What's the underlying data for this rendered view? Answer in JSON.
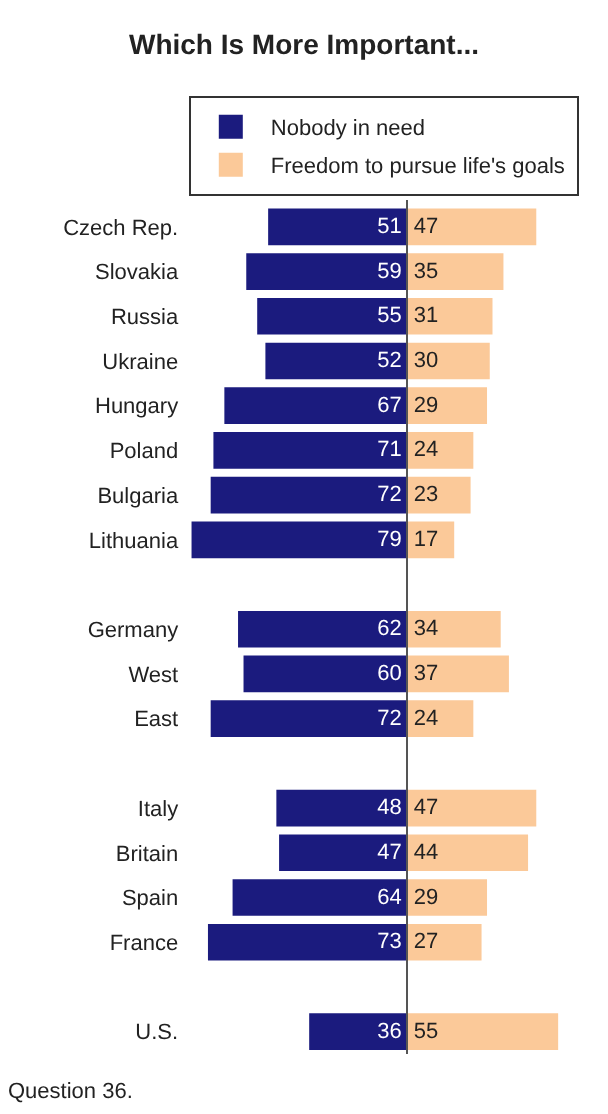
{
  "chart_data": [
    {
      "type": "bar",
      "title": "Which Is More Important...",
      "orientation": "horizontal",
      "legend": "top",
      "data_labels": true,
      "tick_labels": "y",
      "categories": [
        "Czech Rep.",
        "Slovakia",
        "Russia",
        "Ukraine",
        "Hungary",
        "Poland",
        "Bulgaria",
        "Lithuania",
        null,
        "Germany",
        "West",
        "East",
        null,
        "Italy",
        "Britain",
        "Spain",
        "France",
        null,
        "U.S."
      ],
      "series": [
        {
          "name": "Nobody in need",
          "color": "#1b1b7e",
          "values": [
            51,
            59,
            55,
            52,
            67,
            71,
            72,
            79,
            null,
            62,
            60,
            72,
            null,
            48,
            47,
            64,
            73,
            null,
            36
          ]
        }
      ]
    },
    {
      "type": "bar",
      "orientation": "horizontal",
      "legend": "top",
      "data_labels": true,
      "tick_labels": false,
      "categories": [
        "Czech Rep.",
        "Slovakia",
        "Russia",
        "Ukraine",
        "Hungary",
        "Poland",
        "Bulgaria",
        "Lithuania",
        null,
        "Germany",
        "West",
        "East",
        null,
        "Italy",
        "Britain",
        "Spain",
        "France",
        null,
        "U.S."
      ],
      "annotations": [
        "Question 36."
      ],
      "series": [
        {
          "name": "Freedom to pursue life's goals",
          "color": "#fbc999",
          "values": [
            47,
            35,
            31,
            30,
            29,
            24,
            23,
            17,
            null,
            34,
            37,
            24,
            null,
            47,
            44,
            29,
            27,
            null,
            55
          ]
        }
      ]
    }
  ]
}
